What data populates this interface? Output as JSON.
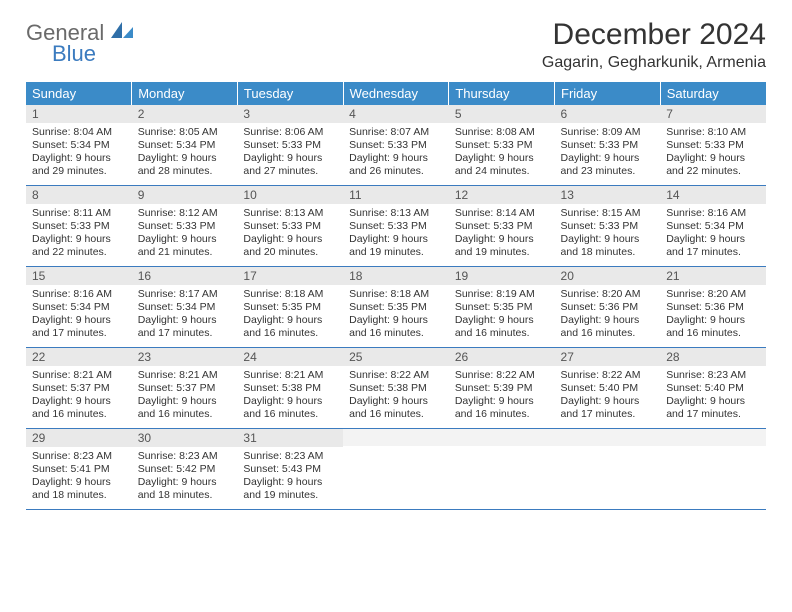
{
  "logo": {
    "general": "General",
    "blue": "Blue"
  },
  "title": "December 2024",
  "location": "Gagarin, Gegharkunik, Armenia",
  "colors": {
    "header_bg": "#3b8bc8",
    "header_text": "#ffffff",
    "daynum_bg": "#e9e9e9",
    "rule": "#3b7bbf",
    "logo_gray": "#6a6a6a",
    "logo_blue": "#3b7bbf"
  },
  "dow": [
    "Sunday",
    "Monday",
    "Tuesday",
    "Wednesday",
    "Thursday",
    "Friday",
    "Saturday"
  ],
  "weeks": [
    [
      {
        "n": "1",
        "sr": "Sunrise: 8:04 AM",
        "ss": "Sunset: 5:34 PM",
        "d1": "Daylight: 9 hours",
        "d2": "and 29 minutes."
      },
      {
        "n": "2",
        "sr": "Sunrise: 8:05 AM",
        "ss": "Sunset: 5:34 PM",
        "d1": "Daylight: 9 hours",
        "d2": "and 28 minutes."
      },
      {
        "n": "3",
        "sr": "Sunrise: 8:06 AM",
        "ss": "Sunset: 5:33 PM",
        "d1": "Daylight: 9 hours",
        "d2": "and 27 minutes."
      },
      {
        "n": "4",
        "sr": "Sunrise: 8:07 AM",
        "ss": "Sunset: 5:33 PM",
        "d1": "Daylight: 9 hours",
        "d2": "and 26 minutes."
      },
      {
        "n": "5",
        "sr": "Sunrise: 8:08 AM",
        "ss": "Sunset: 5:33 PM",
        "d1": "Daylight: 9 hours",
        "d2": "and 24 minutes."
      },
      {
        "n": "6",
        "sr": "Sunrise: 8:09 AM",
        "ss": "Sunset: 5:33 PM",
        "d1": "Daylight: 9 hours",
        "d2": "and 23 minutes."
      },
      {
        "n": "7",
        "sr": "Sunrise: 8:10 AM",
        "ss": "Sunset: 5:33 PM",
        "d1": "Daylight: 9 hours",
        "d2": "and 22 minutes."
      }
    ],
    [
      {
        "n": "8",
        "sr": "Sunrise: 8:11 AM",
        "ss": "Sunset: 5:33 PM",
        "d1": "Daylight: 9 hours",
        "d2": "and 22 minutes."
      },
      {
        "n": "9",
        "sr": "Sunrise: 8:12 AM",
        "ss": "Sunset: 5:33 PM",
        "d1": "Daylight: 9 hours",
        "d2": "and 21 minutes."
      },
      {
        "n": "10",
        "sr": "Sunrise: 8:13 AM",
        "ss": "Sunset: 5:33 PM",
        "d1": "Daylight: 9 hours",
        "d2": "and 20 minutes."
      },
      {
        "n": "11",
        "sr": "Sunrise: 8:13 AM",
        "ss": "Sunset: 5:33 PM",
        "d1": "Daylight: 9 hours",
        "d2": "and 19 minutes."
      },
      {
        "n": "12",
        "sr": "Sunrise: 8:14 AM",
        "ss": "Sunset: 5:33 PM",
        "d1": "Daylight: 9 hours",
        "d2": "and 19 minutes."
      },
      {
        "n": "13",
        "sr": "Sunrise: 8:15 AM",
        "ss": "Sunset: 5:33 PM",
        "d1": "Daylight: 9 hours",
        "d2": "and 18 minutes."
      },
      {
        "n": "14",
        "sr": "Sunrise: 8:16 AM",
        "ss": "Sunset: 5:34 PM",
        "d1": "Daylight: 9 hours",
        "d2": "and 17 minutes."
      }
    ],
    [
      {
        "n": "15",
        "sr": "Sunrise: 8:16 AM",
        "ss": "Sunset: 5:34 PM",
        "d1": "Daylight: 9 hours",
        "d2": "and 17 minutes."
      },
      {
        "n": "16",
        "sr": "Sunrise: 8:17 AM",
        "ss": "Sunset: 5:34 PM",
        "d1": "Daylight: 9 hours",
        "d2": "and 17 minutes."
      },
      {
        "n": "17",
        "sr": "Sunrise: 8:18 AM",
        "ss": "Sunset: 5:35 PM",
        "d1": "Daylight: 9 hours",
        "d2": "and 16 minutes."
      },
      {
        "n": "18",
        "sr": "Sunrise: 8:18 AM",
        "ss": "Sunset: 5:35 PM",
        "d1": "Daylight: 9 hours",
        "d2": "and 16 minutes."
      },
      {
        "n": "19",
        "sr": "Sunrise: 8:19 AM",
        "ss": "Sunset: 5:35 PM",
        "d1": "Daylight: 9 hours",
        "d2": "and 16 minutes."
      },
      {
        "n": "20",
        "sr": "Sunrise: 8:20 AM",
        "ss": "Sunset: 5:36 PM",
        "d1": "Daylight: 9 hours",
        "d2": "and 16 minutes."
      },
      {
        "n": "21",
        "sr": "Sunrise: 8:20 AM",
        "ss": "Sunset: 5:36 PM",
        "d1": "Daylight: 9 hours",
        "d2": "and 16 minutes."
      }
    ],
    [
      {
        "n": "22",
        "sr": "Sunrise: 8:21 AM",
        "ss": "Sunset: 5:37 PM",
        "d1": "Daylight: 9 hours",
        "d2": "and 16 minutes."
      },
      {
        "n": "23",
        "sr": "Sunrise: 8:21 AM",
        "ss": "Sunset: 5:37 PM",
        "d1": "Daylight: 9 hours",
        "d2": "and 16 minutes."
      },
      {
        "n": "24",
        "sr": "Sunrise: 8:21 AM",
        "ss": "Sunset: 5:38 PM",
        "d1": "Daylight: 9 hours",
        "d2": "and 16 minutes."
      },
      {
        "n": "25",
        "sr": "Sunrise: 8:22 AM",
        "ss": "Sunset: 5:38 PM",
        "d1": "Daylight: 9 hours",
        "d2": "and 16 minutes."
      },
      {
        "n": "26",
        "sr": "Sunrise: 8:22 AM",
        "ss": "Sunset: 5:39 PM",
        "d1": "Daylight: 9 hours",
        "d2": "and 16 minutes."
      },
      {
        "n": "27",
        "sr": "Sunrise: 8:22 AM",
        "ss": "Sunset: 5:40 PM",
        "d1": "Daylight: 9 hours",
        "d2": "and 17 minutes."
      },
      {
        "n": "28",
        "sr": "Sunrise: 8:23 AM",
        "ss": "Sunset: 5:40 PM",
        "d1": "Daylight: 9 hours",
        "d2": "and 17 minutes."
      }
    ],
    [
      {
        "n": "29",
        "sr": "Sunrise: 8:23 AM",
        "ss": "Sunset: 5:41 PM",
        "d1": "Daylight: 9 hours",
        "d2": "and 18 minutes."
      },
      {
        "n": "30",
        "sr": "Sunrise: 8:23 AM",
        "ss": "Sunset: 5:42 PM",
        "d1": "Daylight: 9 hours",
        "d2": "and 18 minutes."
      },
      {
        "n": "31",
        "sr": "Sunrise: 8:23 AM",
        "ss": "Sunset: 5:43 PM",
        "d1": "Daylight: 9 hours",
        "d2": "and 19 minutes."
      },
      null,
      null,
      null,
      null
    ]
  ]
}
